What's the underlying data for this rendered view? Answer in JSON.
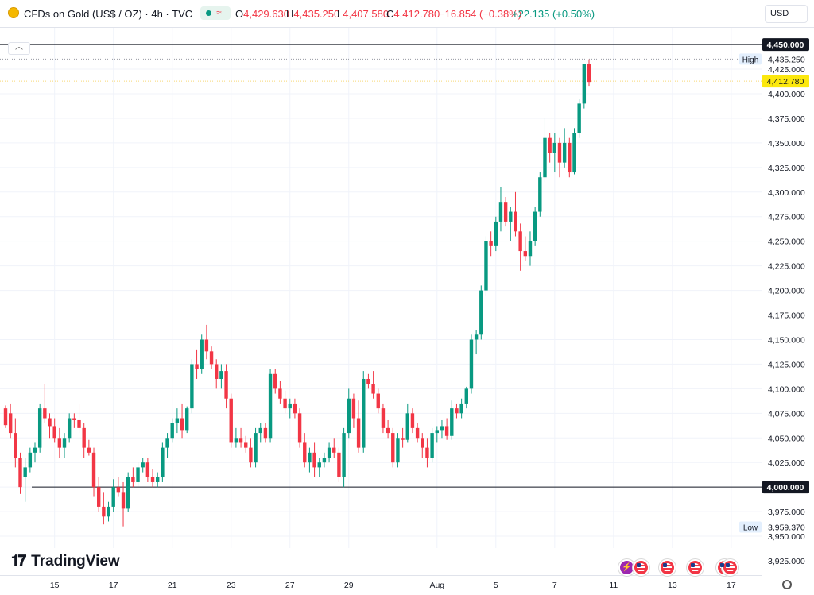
{
  "header": {
    "title": "CFDs on Gold (US$ / OZ) · 4h · TVC",
    "open_label": "O",
    "open": "4,429.630",
    "high_label": "H",
    "high": "4,435.250",
    "low_label": "L",
    "low": "4,407.580",
    "close_label": "C",
    "close": "4,412.780",
    "change": "−16.854 (−0.38%)",
    "change2": "+22.135 (+0.50%)"
  },
  "currency": "USD",
  "brand": "TradingView",
  "colors": {
    "up": "#089981",
    "down": "#f23645",
    "grid": "#f0f3fa",
    "level": "#131722"
  },
  "icons": [
    "gold-coin-icon",
    "live-dot-icon",
    "wave-icon",
    "chevron-up-icon",
    "lightning-icon",
    "us-flag-icon",
    "settings-icon"
  ],
  "chart_data": {
    "type": "candlestick",
    "ylim": [
      3915,
      4470
    ],
    "y_ticks": [
      3925,
      3950,
      3975,
      4000,
      4025,
      4050,
      4075,
      4100,
      4125,
      4150,
      4175,
      4200,
      4225,
      4250,
      4275,
      4300,
      4325,
      4350,
      4375,
      4400,
      4425
    ],
    "x_ticks": [
      {
        "label": "15",
        "idx": 10
      },
      {
        "label": "17",
        "idx": 22
      },
      {
        "label": "21",
        "idx": 34
      },
      {
        "label": "23",
        "idx": 46
      },
      {
        "label": "27",
        "idx": 58
      },
      {
        "label": "29",
        "idx": 70
      },
      {
        "label": "Aug",
        "idx": 88
      },
      {
        "label": "5",
        "idx": 100
      },
      {
        "label": "7",
        "idx": 112
      },
      {
        "label": "11",
        "idx": 124
      },
      {
        "label": "13",
        "idx": 136
      },
      {
        "label": "17",
        "idx": 148
      }
    ],
    "levels": [
      {
        "value": 4450.0,
        "label": "4,450.000"
      },
      {
        "value": 4000.0,
        "label": "4,000.000"
      }
    ],
    "high": {
      "value": 4435.25,
      "tag": "High",
      "label": "4,435.250"
    },
    "low": {
      "value": 3959.37,
      "tag": "Low",
      "label": "3,959.370"
    },
    "last_price": {
      "value": 4412.78,
      "label": "4,412.780"
    },
    "candles": [
      [
        4080,
        4083,
        4060,
        4063
      ],
      [
        4075,
        4085,
        4050,
        4055
      ],
      [
        4055,
        4070,
        4020,
        4030
      ],
      [
        4030,
        4035,
        3993,
        4000
      ],
      [
        4010,
        4030,
        3985,
        4020
      ],
      [
        4020,
        4040,
        4015,
        4035
      ],
      [
        4035,
        4045,
        4025,
        4040
      ],
      [
        4040,
        4085,
        4035,
        4080
      ],
      [
        4080,
        4105,
        4065,
        4070
      ],
      [
        4070,
        4075,
        4050,
        4062
      ],
      [
        4062,
        4070,
        4045,
        4050
      ],
      [
        4050,
        4060,
        4030,
        4040
      ],
      [
        4040,
        4055,
        4030,
        4050
      ],
      [
        4050,
        4075,
        4045,
        4070
      ],
      [
        4070,
        4075,
        4060,
        4068
      ],
      [
        4068,
        4085,
        4055,
        4060
      ],
      [
        4060,
        4065,
        4030,
        4040
      ],
      [
        4040,
        4048,
        4032,
        4035
      ],
      [
        4035,
        4040,
        3990,
        4000
      ],
      [
        4000,
        4010,
        3975,
        3980
      ],
      [
        3980,
        3995,
        3962,
        3970
      ],
      [
        3970,
        3985,
        3965,
        3980
      ],
      [
        3980,
        4008,
        3975,
        4000
      ],
      [
        4000,
        4010,
        3990,
        3995
      ],
      [
        3995,
        4005,
        3960,
        3978
      ],
      [
        3978,
        4015,
        3975,
        4010
      ],
      [
        4010,
        4020,
        4000,
        4005
      ],
      [
        4005,
        4025,
        4000,
        4020
      ],
      [
        4020,
        4030,
        4015,
        4025
      ],
      [
        4025,
        4030,
        4005,
        4010
      ],
      [
        4010,
        4018,
        4000,
        4005
      ],
      [
        4005,
        4015,
        4000,
        4010
      ],
      [
        4010,
        4045,
        4005,
        4040
      ],
      [
        4040,
        4055,
        4030,
        4050
      ],
      [
        4050,
        4070,
        4045,
        4065
      ],
      [
        4065,
        4080,
        4055,
        4070
      ],
      [
        4070,
        4085,
        4050,
        4058
      ],
      [
        4058,
        4082,
        4055,
        4080
      ],
      [
        4080,
        4130,
        4075,
        4125
      ],
      [
        4125,
        4140,
        4110,
        4120
      ],
      [
        4120,
        4155,
        4115,
        4150
      ],
      [
        4150,
        4165,
        4130,
        4138
      ],
      [
        4138,
        4143,
        4120,
        4125
      ],
      [
        4125,
        4130,
        4100,
        4110
      ],
      [
        4110,
        4125,
        4100,
        4118
      ],
      [
        4118,
        4125,
        4080,
        4090
      ],
      [
        4090,
        4095,
        4040,
        4045
      ],
      [
        4045,
        4060,
        4040,
        4050
      ],
      [
        4050,
        4060,
        4040,
        4045
      ],
      [
        4045,
        4052,
        4035,
        4040
      ],
      [
        4040,
        4050,
        4020,
        4025
      ],
      [
        4025,
        4060,
        4020,
        4055
      ],
      [
        4055,
        4065,
        4045,
        4060
      ],
      [
        4060,
        4065,
        4045,
        4050
      ],
      [
        4050,
        4120,
        4045,
        4115
      ],
      [
        4115,
        4120,
        4095,
        4100
      ],
      [
        4100,
        4108,
        4085,
        4090
      ],
      [
        4090,
        4098,
        4075,
        4080
      ],
      [
        4080,
        4090,
        4070,
        4085
      ],
      [
        4085,
        4090,
        4070,
        4075
      ],
      [
        4075,
        4080,
        4040,
        4045
      ],
      [
        4045,
        4055,
        4020,
        4025
      ],
      [
        4025,
        4040,
        4015,
        4035
      ],
      [
        4035,
        4045,
        4010,
        4020
      ],
      [
        4020,
        4030,
        4010,
        4025
      ],
      [
        4025,
        4035,
        4020,
        4030
      ],
      [
        4030,
        4045,
        4025,
        4040
      ],
      [
        4040,
        4050,
        4030,
        4035
      ],
      [
        4035,
        4040,
        4005,
        4010
      ],
      [
        4010,
        4060,
        4000,
        4055
      ],
      [
        4055,
        4100,
        4050,
        4090
      ],
      [
        4090,
        4095,
        4060,
        4070
      ],
      [
        4070,
        4088,
        4035,
        4040
      ],
      [
        4040,
        4118,
        4035,
        4110
      ],
      [
        4110,
        4115,
        4100,
        4105
      ],
      [
        4105,
        4118,
        4090,
        4095
      ],
      [
        4095,
        4100,
        4075,
        4080
      ],
      [
        4080,
        4085,
        4055,
        4060
      ],
      [
        4060,
        4068,
        4050,
        4055
      ],
      [
        4055,
        4060,
        4020,
        4025
      ],
      [
        4025,
        4055,
        4020,
        4050
      ],
      [
        4050,
        4060,
        4040,
        4048
      ],
      [
        4048,
        4085,
        4045,
        4075
      ],
      [
        4075,
        4080,
        4055,
        4060
      ],
      [
        4060,
        4065,
        4045,
        4050
      ],
      [
        4050,
        4055,
        4030,
        4040
      ],
      [
        4040,
        4050,
        4020,
        4030
      ],
      [
        4030,
        4060,
        4025,
        4055
      ],
      [
        4055,
        4062,
        4045,
        4058
      ],
      [
        4058,
        4068,
        4050,
        4062
      ],
      [
        4062,
        4070,
        4048,
        4052
      ],
      [
        4052,
        4088,
        4048,
        4080
      ],
      [
        4080,
        4085,
        4070,
        4075
      ],
      [
        4075,
        4090,
        4070,
        4085
      ],
      [
        4085,
        4102,
        4080,
        4100
      ],
      [
        4100,
        4155,
        4095,
        4150
      ],
      [
        4150,
        4160,
        4135,
        4155
      ],
      [
        4155,
        4205,
        4150,
        4200
      ],
      [
        4200,
        4255,
        4195,
        4250
      ],
      [
        4250,
        4260,
        4235,
        4245
      ],
      [
        4245,
        4275,
        4240,
        4270
      ],
      [
        4270,
        4305,
        4260,
        4290
      ],
      [
        4290,
        4295,
        4265,
        4270
      ],
      [
        4270,
        4285,
        4250,
        4280
      ],
      [
        4280,
        4300,
        4255,
        4260
      ],
      [
        4260,
        4268,
        4220,
        4240
      ],
      [
        4240,
        4255,
        4230,
        4235
      ],
      [
        4235,
        4260,
        4225,
        4250
      ],
      [
        4250,
        4285,
        4245,
        4280
      ],
      [
        4280,
        4320,
        4275,
        4315
      ],
      [
        4315,
        4375,
        4310,
        4355
      ],
      [
        4355,
        4360,
        4330,
        4340
      ],
      [
        4340,
        4360,
        4320,
        4350
      ],
      [
        4350,
        4355,
        4315,
        4330
      ],
      [
        4330,
        4365,
        4325,
        4350
      ],
      [
        4350,
        4355,
        4315,
        4320
      ],
      [
        4320,
        4365,
        4318,
        4360
      ],
      [
        4360,
        4395,
        4355,
        4390
      ],
      [
        4390,
        4425,
        4385,
        4430
      ],
      [
        4430,
        4435,
        4408,
        4412
      ]
    ]
  }
}
